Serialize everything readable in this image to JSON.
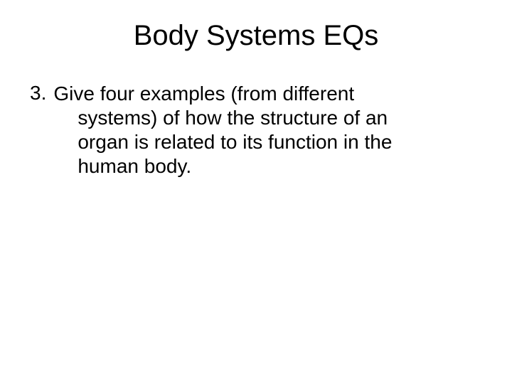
{
  "slide": {
    "title": "Body Systems EQs",
    "item_number": "3.",
    "line1": "Give four examples (from different",
    "line2": "systems) of how the structure of an",
    "line3": "organ is related to its function in the",
    "line4": "human body.",
    "background_color": "#ffffff",
    "text_color": "#000000",
    "title_fontsize": 40,
    "body_fontsize": 28,
    "font_family": "Arial"
  }
}
